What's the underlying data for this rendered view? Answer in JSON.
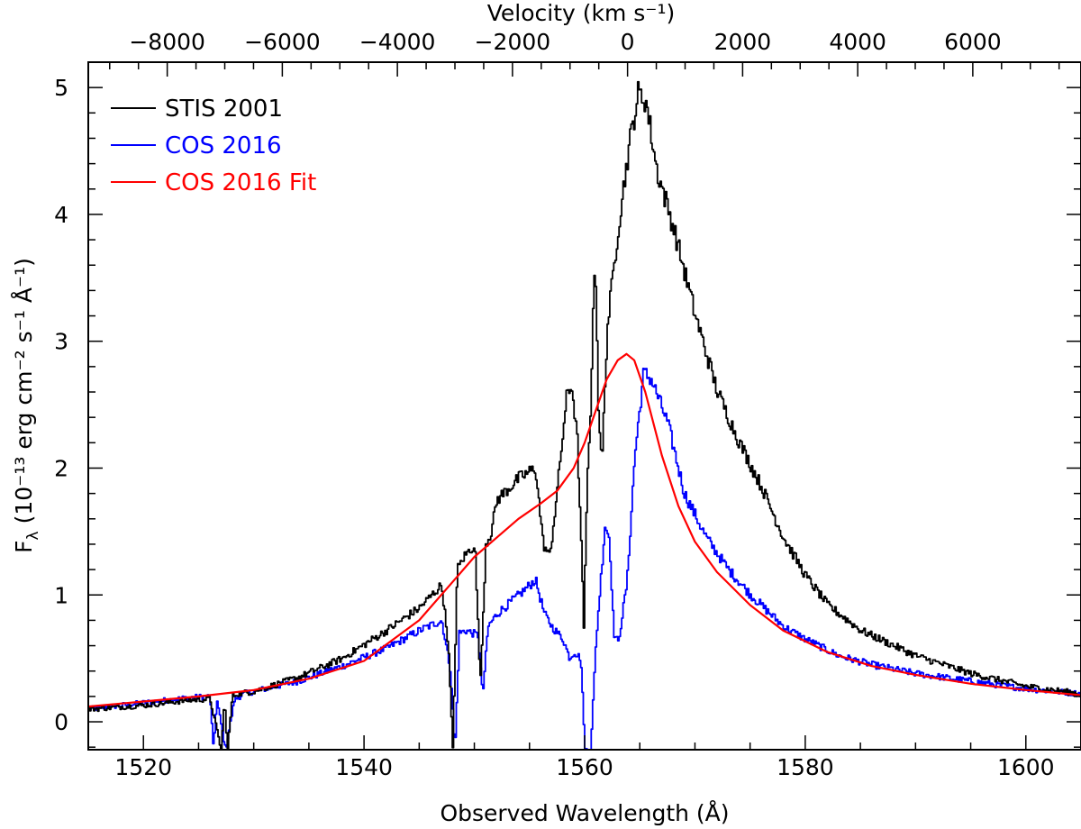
{
  "chart_data": {
    "type": "line",
    "title": "",
    "xlabel": "Observed Wavelength (Å)",
    "ylabel": "F",
    "ylabel_subscript": "λ",
    "ylabel_units": "(10⁻¹³ erg cm⁻² s⁻¹ Å⁻¹)",
    "top_xlabel": "Velocity (km s⁻¹)",
    "xlim": [
      1515,
      1605
    ],
    "ylim": [
      -0.22,
      5.2
    ],
    "xticks": [
      1520,
      1540,
      1560,
      1580,
      1600
    ],
    "xtick_labels": [
      "1520",
      "1540",
      "1560",
      "1580",
      "1600"
    ],
    "yticks": [
      0,
      1,
      2,
      3,
      4,
      5
    ],
    "ytick_labels": [
      "0",
      "1",
      "2",
      "3",
      "4",
      "5"
    ],
    "top_axis": {
      "rest_wavelength": 1549.48,
      "redshift": 0.0093,
      "ticks": [
        -8000,
        -6000,
        -4000,
        -2000,
        0,
        2000,
        4000,
        6000
      ],
      "tick_labels": [
        "−8000",
        "−6000",
        "−4000",
        "−2000",
        "0",
        "2000",
        "4000",
        "6000"
      ]
    },
    "legend_position": "top-left",
    "series": [
      {
        "name": "STIS 2001",
        "color": "#000000",
        "style": "step",
        "x": [
          1515,
          1520,
          1524,
          1526,
          1527.0,
          1527.3,
          1527.6,
          1528.0,
          1528.4,
          1530,
          1534,
          1538,
          1542,
          1545,
          1547,
          1547.6,
          1548.0,
          1548.4,
          1549,
          1550.0,
          1550.5,
          1551.0,
          1551.5,
          1552,
          1554,
          1555.5,
          1556.2,
          1556.8,
          1557.5,
          1558.3,
          1558.8,
          1559.3,
          1559.6,
          1559.9,
          1560.0,
          1560.2,
          1560.5,
          1560.9,
          1561.2,
          1561.5,
          1562,
          1563,
          1564,
          1564.8,
          1565.5,
          1566.5,
          1568,
          1570,
          1572,
          1574,
          1576,
          1578,
          1580,
          1582,
          1585,
          1590,
          1595,
          1600,
          1605
        ],
        "y": [
          0.1,
          0.13,
          0.17,
          0.18,
          -0.22,
          0.16,
          -0.22,
          0.2,
          0.22,
          0.24,
          0.35,
          0.5,
          0.72,
          0.9,
          1.08,
          0.6,
          -0.22,
          1.2,
          1.3,
          1.4,
          0.3,
          1.4,
          1.5,
          1.75,
          1.92,
          2.0,
          1.4,
          1.3,
          1.85,
          2.55,
          2.65,
          2.2,
          1.5,
          0.7,
          1.2,
          1.9,
          2.5,
          3.75,
          2.5,
          2.0,
          3.1,
          3.9,
          4.55,
          4.95,
          4.9,
          4.35,
          3.9,
          3.2,
          2.6,
          2.2,
          1.85,
          1.45,
          1.15,
          0.92,
          0.72,
          0.52,
          0.38,
          0.28,
          0.22
        ]
      },
      {
        "name": "COS 2016",
        "color": "#0000ff",
        "style": "step",
        "x": [
          1515,
          1520,
          1524,
          1526.0,
          1526.3,
          1526.6,
          1527.4,
          1528.2,
          1529.0,
          1530,
          1534,
          1538,
          1542,
          1545,
          1547,
          1547.8,
          1548.2,
          1548.6,
          1549.2,
          1550.3,
          1550.7,
          1551.2,
          1552,
          1554,
          1555.5,
          1556.3,
          1557,
          1558,
          1558.6,
          1559.0,
          1559.6,
          1560.0,
          1560.5,
          1561.0,
          1561.8,
          1562.2,
          1562.6,
          1563,
          1563.8,
          1564.5,
          1565.3,
          1566,
          1567.5,
          1569,
          1571,
          1573,
          1575,
          1578,
          1580,
          1583,
          1586,
          1590,
          1595,
          1600,
          1605
        ],
        "y": [
          0.1,
          0.15,
          0.19,
          0.2,
          -0.22,
          0.18,
          -0.22,
          0.17,
          0.22,
          0.24,
          0.32,
          0.44,
          0.58,
          0.72,
          0.8,
          0.4,
          -0.22,
          0.7,
          0.72,
          0.68,
          0.2,
          0.75,
          0.85,
          1.0,
          1.12,
          0.85,
          0.75,
          0.65,
          0.5,
          0.55,
          0.5,
          -0.22,
          -0.22,
          0.65,
          1.55,
          1.45,
          0.7,
          0.62,
          1.1,
          2.1,
          2.75,
          2.7,
          2.35,
          1.8,
          1.45,
          1.2,
          1.0,
          0.75,
          0.65,
          0.52,
          0.45,
          0.38,
          0.32,
          0.26,
          0.22
        ]
      },
      {
        "name": "COS 2016 Fit",
        "color": "#ff0000",
        "style": "line",
        "x": [
          1515,
          1520,
          1525,
          1530,
          1535,
          1540,
          1545,
          1548,
          1550,
          1552,
          1554,
          1556,
          1557.5,
          1559,
          1560,
          1561,
          1562,
          1563,
          1563.8,
          1564.5,
          1565.5,
          1567,
          1568.5,
          1570,
          1572,
          1575,
          1578,
          1582,
          1586,
          1590,
          1595,
          1600,
          1605
        ],
        "y": [
          0.12,
          0.16,
          0.2,
          0.25,
          0.34,
          0.48,
          0.8,
          1.1,
          1.3,
          1.45,
          1.6,
          1.72,
          1.82,
          2.0,
          2.2,
          2.45,
          2.7,
          2.85,
          2.9,
          2.85,
          2.6,
          2.1,
          1.7,
          1.42,
          1.18,
          0.92,
          0.72,
          0.55,
          0.44,
          0.37,
          0.3,
          0.25,
          0.21
        ]
      }
    ]
  }
}
